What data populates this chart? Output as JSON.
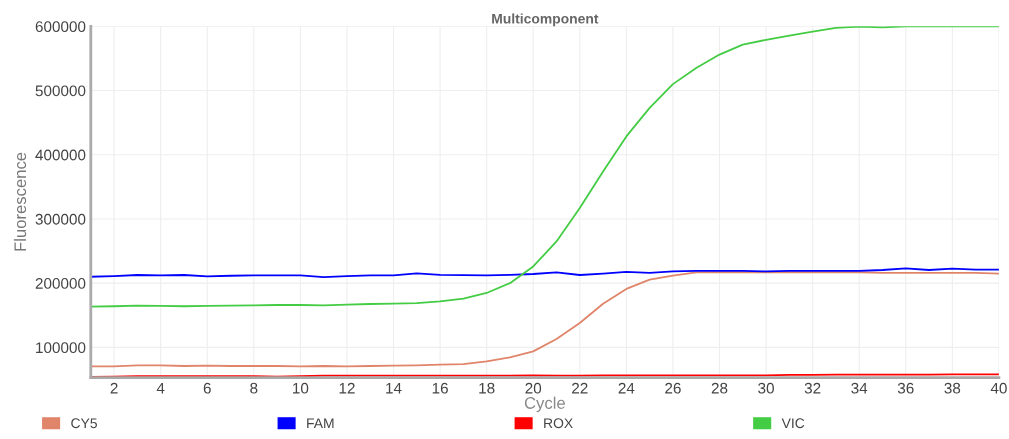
{
  "chart_data": {
    "type": "line",
    "title": "Multicomponent",
    "xlabel": "Cycle",
    "ylabel": "Fluorescence",
    "x": [
      1,
      2,
      3,
      4,
      5,
      6,
      7,
      8,
      9,
      10,
      11,
      12,
      13,
      14,
      15,
      16,
      17,
      18,
      19,
      20,
      21,
      22,
      23,
      24,
      25,
      26,
      27,
      28,
      29,
      30,
      31,
      32,
      33,
      34,
      35,
      36,
      37,
      38,
      39,
      40
    ],
    "series": [
      {
        "name": "CY5",
        "color": "#e0856a",
        "values": [
          70400,
          70500,
          72000,
          72000,
          71000,
          71500,
          71000,
          71000,
          71000,
          70500,
          71000,
          70500,
          71000,
          71500,
          72000,
          73000,
          74000,
          78200,
          84400,
          93800,
          113000,
          138000,
          168000,
          191000,
          205500,
          211700,
          216800,
          217000,
          217000,
          217000,
          217000,
          217000,
          217000,
          217000,
          216000,
          216000,
          216000,
          216000,
          216000,
          215000
        ]
      },
      {
        "name": "FAM",
        "color": "#0000ff",
        "values": [
          210000,
          211000,
          212700,
          212000,
          212700,
          210500,
          211500,
          212000,
          212000,
          212000,
          209500,
          211000,
          212000,
          212000,
          215300,
          213000,
          212500,
          212000,
          213000,
          214300,
          216800,
          212700,
          215000,
          217500,
          216000,
          218400,
          219000,
          219000,
          219000,
          218400,
          219000,
          219000,
          219000,
          219000,
          220500,
          223000,
          220500,
          222500,
          221000,
          221000
        ]
      },
      {
        "name": "ROX",
        "color": "#ff0000",
        "values": [
          54000,
          54500,
          55000,
          55000,
          55000,
          55000,
          55000,
          55000,
          54500,
          55000,
          56000,
          56000,
          56000,
          56000,
          56000,
          56000,
          56000,
          56000,
          56000,
          56500,
          56000,
          56000,
          56500,
          56500,
          56500,
          56500,
          56500,
          56500,
          56500,
          56500,
          57000,
          57000,
          57500,
          57500,
          57500,
          57500,
          57500,
          58000,
          58000,
          58000
        ]
      },
      {
        "name": "VIC",
        "color": "#44cc44",
        "values": [
          163500,
          164000,
          165000,
          164500,
          164000,
          164500,
          165000,
          165500,
          166000,
          166000,
          165500,
          166500,
          167500,
          168000,
          169000,
          171600,
          176000,
          184700,
          200000,
          226000,
          265000,
          317000,
          374000,
          428600,
          473000,
          510000,
          535000,
          556000,
          571500,
          579000,
          585500,
          591700,
          597500,
          599500,
          598500,
          600000,
          600000,
          600000,
          600000,
          600000
        ]
      }
    ],
    "xlim": [
      1,
      40
    ],
    "xticks": [
      2,
      4,
      6,
      8,
      10,
      12,
      14,
      16,
      18,
      20,
      22,
      24,
      26,
      28,
      30,
      32,
      34,
      36,
      38,
      40
    ],
    "ylim": [
      53000,
      600000
    ],
    "yticks": [
      100000,
      200000,
      300000,
      400000,
      500000,
      600000
    ],
    "grid": true,
    "legend": "bottom",
    "marker": "none",
    "line_style": "solid"
  }
}
